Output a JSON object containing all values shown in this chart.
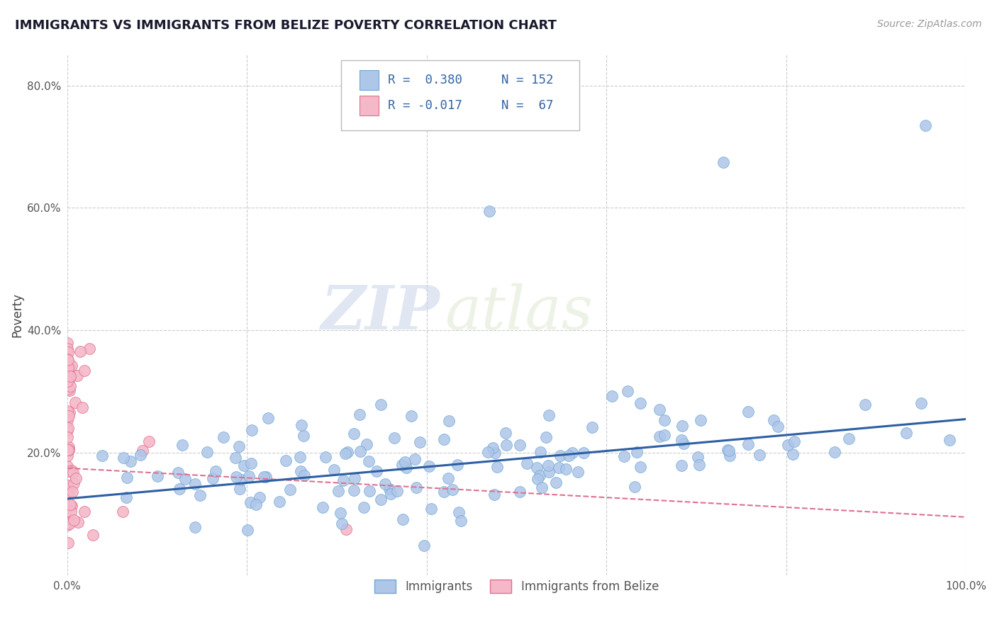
{
  "title": "IMMIGRANTS VS IMMIGRANTS FROM BELIZE POVERTY CORRELATION CHART",
  "source_text": "Source: ZipAtlas.com",
  "ylabel": "Poverty",
  "watermark_zip": "ZIP",
  "watermark_atlas": "atlas",
  "legend_r1": "R =  0.380",
  "legend_n1": "N = 152",
  "legend_r2": "R = -0.017",
  "legend_n2": "N =  67",
  "xlim": [
    0.0,
    1.0
  ],
  "ylim": [
    0.0,
    0.85
  ],
  "xticks": [
    0.0,
    0.2,
    0.4,
    0.6,
    0.8,
    1.0
  ],
  "xticklabels": [
    "0.0%",
    "",
    "",
    "",
    "",
    "100.0%"
  ],
  "yticks": [
    0.2,
    0.4,
    0.6,
    0.8
  ],
  "yticklabels": [
    "20.0%",
    "40.0%",
    "60.0%",
    "80.0%"
  ],
  "grid_color": "#cccccc",
  "bg_color": "#ffffff",
  "scatter1_color": "#aec6e8",
  "scatter1_edge": "#6fa8d6",
  "scatter2_color": "#f4b8c8",
  "scatter2_edge": "#e07090",
  "line1_color": "#2e5fa3",
  "line2_color": "#e07090",
  "title_color": "#1a1a2e",
  "axis_label_color": "#444444",
  "legend_text_color": "#3465a4",
  "seed": 42
}
